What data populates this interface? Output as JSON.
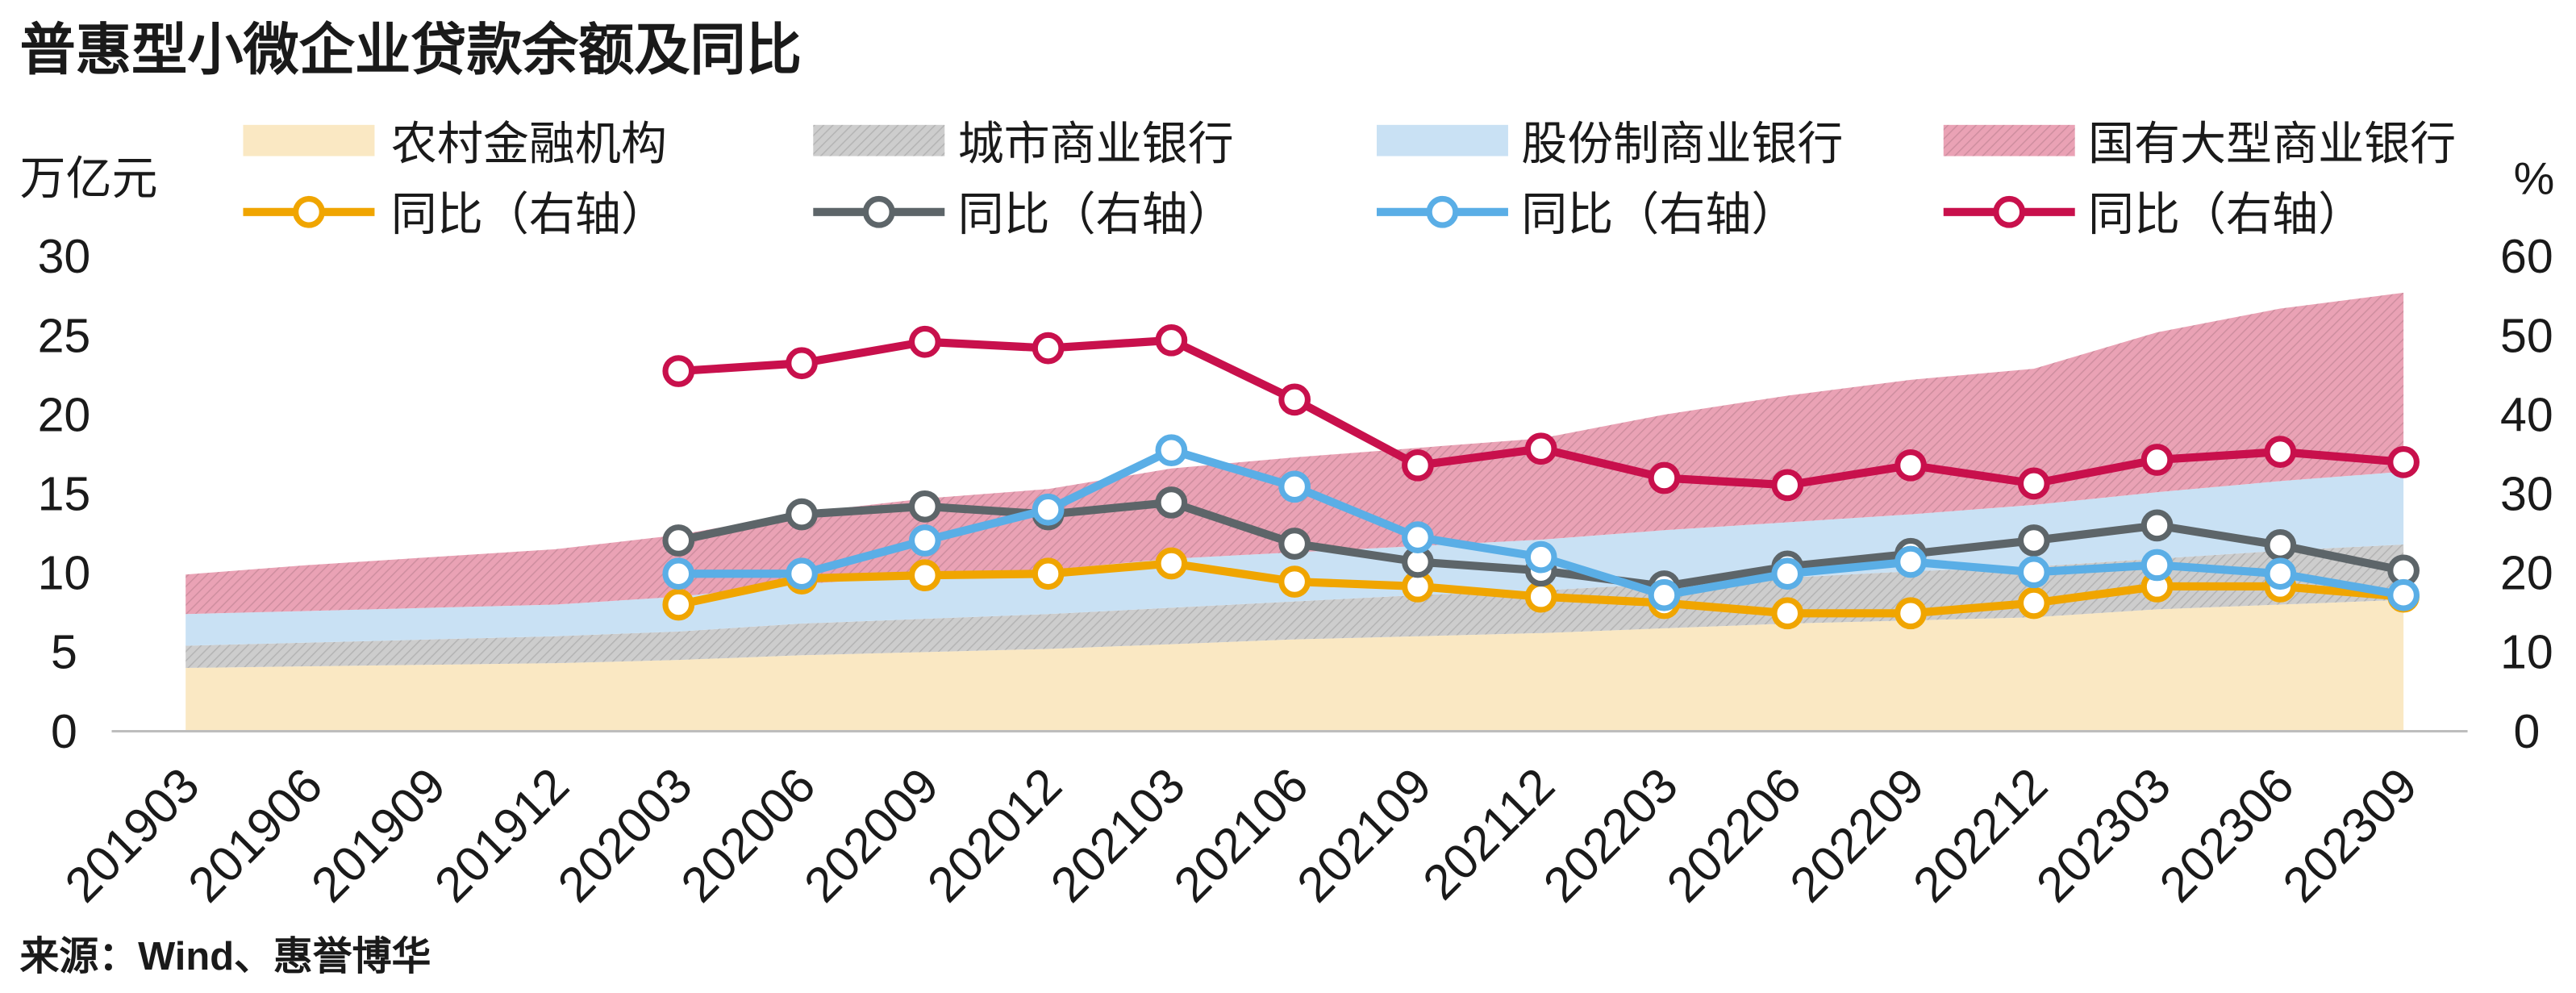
{
  "source": "来源：Wind、惠誉博华",
  "chart_data": {
    "type": "area",
    "title": "普惠型小微企业贷款余额及同比",
    "xlabel": "",
    "ylabel": "万亿元",
    "y2label": "%",
    "ylim": [
      0,
      30
    ],
    "y2lim": [
      0,
      60
    ],
    "yticks": [
      0,
      5,
      10,
      15,
      20,
      25,
      30
    ],
    "y2ticks": [
      0,
      10,
      20,
      30,
      40,
      50,
      60
    ],
    "stacked": true,
    "grid": false,
    "legend": "top",
    "categories": [
      "201903",
      "201906",
      "201909",
      "201912",
      "202003",
      "202006",
      "202009",
      "202012",
      "202103",
      "202106",
      "202109",
      "202112",
      "202203",
      "202206",
      "202209",
      "202212",
      "202303",
      "202306",
      "202309"
    ],
    "series": [
      {
        "name": "农村金融机构",
        "type": "area",
        "axis": "left",
        "color": "#fae8c3",
        "hatched": false,
        "values": [
          4.0,
          4.1,
          4.2,
          4.3,
          4.5,
          4.8,
          5.0,
          5.2,
          5.5,
          5.8,
          6.0,
          6.2,
          6.5,
          6.8,
          7.0,
          7.2,
          7.7,
          8.0,
          8.3
        ]
      },
      {
        "name": "城市商业银行",
        "type": "area",
        "axis": "left",
        "color": "#cdcdcd",
        "hatched": true,
        "values": [
          1.4,
          1.5,
          1.6,
          1.7,
          1.8,
          2.0,
          2.1,
          2.2,
          2.3,
          2.4,
          2.6,
          2.7,
          2.8,
          2.9,
          3.1,
          3.2,
          3.2,
          3.4,
          3.5
        ]
      },
      {
        "name": "股份制商业银行",
        "type": "area",
        "axis": "left",
        "color": "#c9e1f4",
        "hatched": false,
        "values": [
          2.0,
          2.0,
          2.0,
          2.0,
          2.2,
          2.5,
          2.7,
          2.8,
          3.1,
          3.1,
          3.1,
          3.2,
          3.4,
          3.5,
          3.6,
          3.9,
          4.2,
          4.4,
          4.6
        ]
      },
      {
        "name": "国有大型商业银行",
        "type": "area",
        "axis": "left",
        "color": "#eaa2b5",
        "hatched": true,
        "values": [
          2.5,
          2.9,
          3.2,
          3.5,
          3.9,
          4.5,
          4.9,
          5.1,
          5.7,
          6.0,
          6.2,
          6.4,
          7.3,
          8.0,
          8.5,
          8.6,
          10.1,
          10.9,
          11.3
        ]
      },
      {
        "name": "同比（右轴）",
        "type": "line",
        "axis": "right",
        "color": "#f0a500",
        "values": [
          null,
          null,
          null,
          null,
          16.0,
          19.3,
          19.7,
          19.9,
          21.2,
          18.9,
          18.3,
          17.0,
          16.2,
          14.9,
          14.9,
          16.2,
          18.3,
          18.3,
          17.0
        ]
      },
      {
        "name": "同比（右轴）",
        "type": "line",
        "axis": "right",
        "color": "#5d6569",
        "values": [
          null,
          null,
          null,
          null,
          24.1,
          27.4,
          28.4,
          27.4,
          28.9,
          23.7,
          21.4,
          20.3,
          18.3,
          20.8,
          22.4,
          24.1,
          26.0,
          23.5,
          20.3
        ]
      },
      {
        "name": "同比（右轴）",
        "type": "line",
        "axis": "right",
        "color": "#5aaee6",
        "values": [
          null,
          null,
          null,
          null,
          19.9,
          19.9,
          24.1,
          28.0,
          35.5,
          30.9,
          24.5,
          22.0,
          17.2,
          19.9,
          21.4,
          20.1,
          21.0,
          19.9,
          17.2
        ]
      },
      {
        "name": "同比（右轴）",
        "type": "line",
        "axis": "right",
        "color": "#c8104c",
        "values": [
          null,
          null,
          null,
          null,
          45.5,
          46.5,
          49.2,
          48.4,
          49.4,
          41.9,
          33.6,
          35.7,
          32.0,
          31.1,
          33.6,
          31.3,
          34.3,
          35.3,
          34.0
        ]
      }
    ]
  }
}
